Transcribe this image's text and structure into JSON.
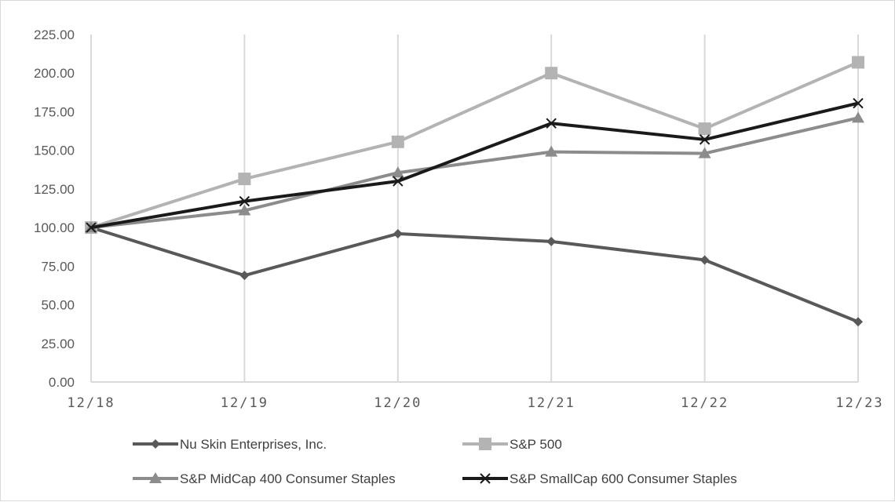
{
  "chart_data": {
    "type": "line",
    "categories": [
      "12/18",
      "12/19",
      "12/20",
      "12/21",
      "12/22",
      "12/23"
    ],
    "y_ticks": [
      "0.00",
      "25.00",
      "50.00",
      "75.00",
      "100.00",
      "125.00",
      "150.00",
      "175.00",
      "200.00",
      "225.00"
    ],
    "ylim": [
      0,
      225
    ],
    "grid": "vertical",
    "legend_position": "bottom",
    "series": [
      {
        "name": "Nu Skin Enterprises, Inc.",
        "marker": "diamond",
        "color": "#595959",
        "values": [
          100,
          69,
          96,
          91,
          79,
          39
        ]
      },
      {
        "name": "S&P 500",
        "marker": "square",
        "color": "#b3b3b3",
        "values": [
          100,
          131.5,
          155.5,
          200,
          164,
          207
        ]
      },
      {
        "name": "S&P MidCap 400 Consumer Staples",
        "marker": "triangle",
        "color": "#8c8c8c",
        "values": [
          100,
          111,
          135.5,
          149,
          148,
          171
        ]
      },
      {
        "name": "S&P SmallCap 600 Consumer Staples",
        "marker": "x",
        "color": "#1a1a1a",
        "values": [
          100,
          117,
          130,
          167.5,
          157,
          180.5
        ]
      }
    ]
  }
}
